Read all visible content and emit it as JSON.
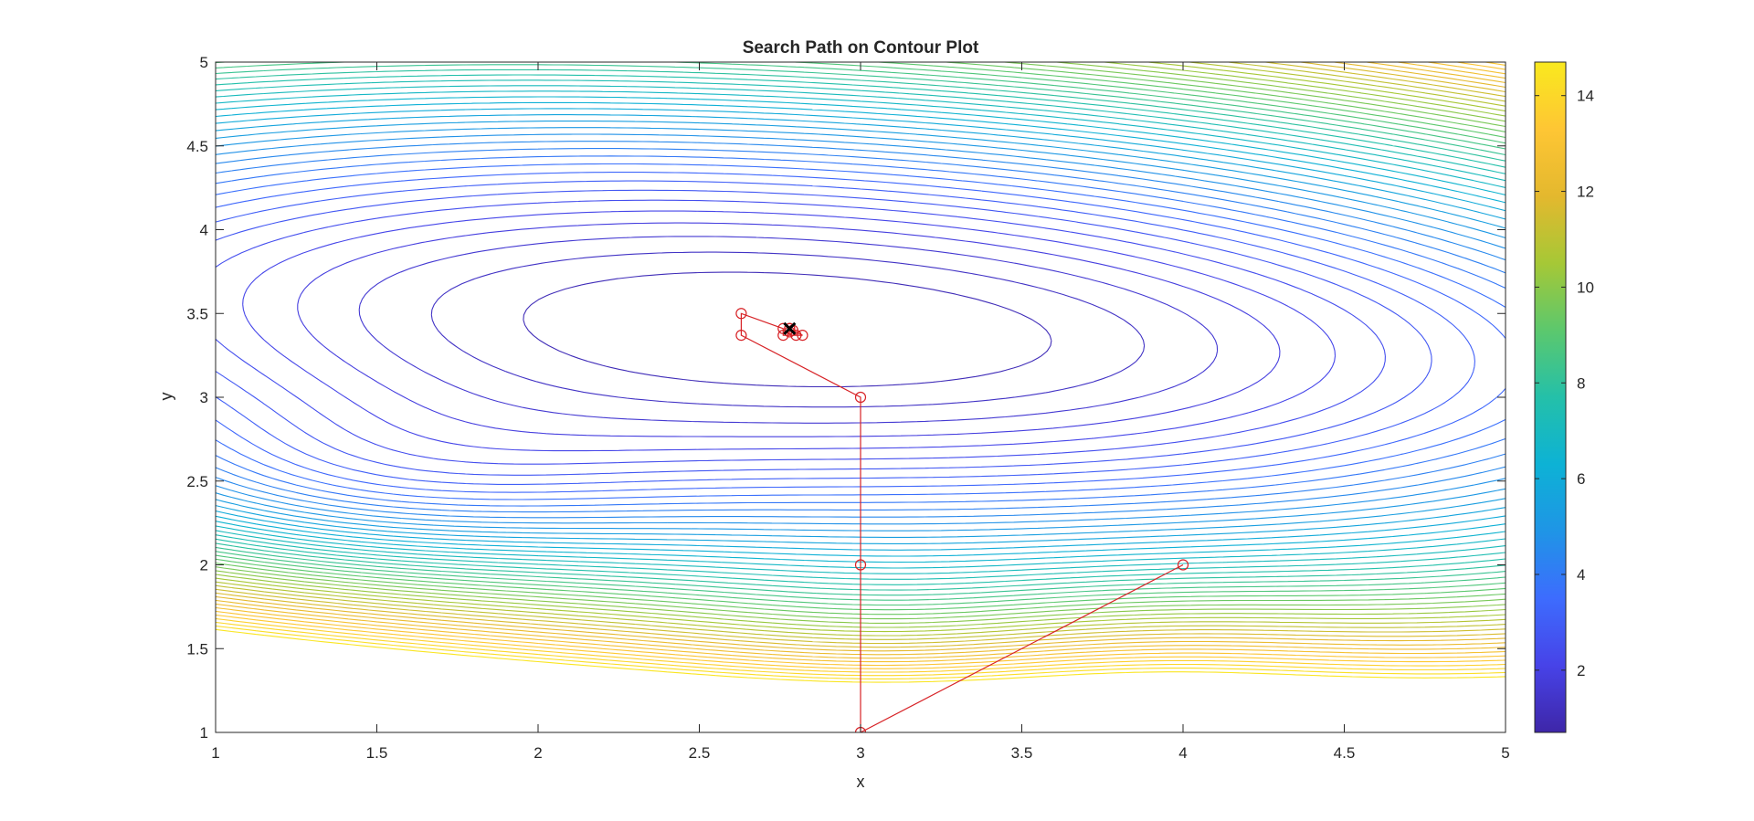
{
  "chart_data": {
    "type": "contour",
    "title": "Search Path on Contour Plot",
    "xlabel": "x",
    "ylabel": "y",
    "xlim": [
      1,
      5
    ],
    "ylim": [
      1,
      5
    ],
    "xticks": [
      "1",
      "1.5",
      "2",
      "2.5",
      "3",
      "3.5",
      "4",
      "4.5",
      "5"
    ],
    "yticks": [
      "1",
      "1.5",
      "2",
      "2.5",
      "3",
      "3.5",
      "4",
      "4.5",
      "5"
    ],
    "colorbar": {
      "ticks": [
        "2",
        "4",
        "6",
        "8",
        "10",
        "12",
        "14"
      ],
      "range": [
        0.7,
        14.7
      ],
      "colormap": "parula",
      "colors": [
        "#3e26a8",
        "#4743e8",
        "#3d6cfe",
        "#1f95e6",
        "#0db2d5",
        "#24c0a9",
        "#5cc86d",
        "#a6c836",
        "#e4b82e",
        "#fec634",
        "#f9e91e"
      ]
    },
    "contour": {
      "minimum": [
        2.78,
        3.41
      ],
      "min_value": 0.7,
      "max_value": 14.7,
      "levels": 48
    },
    "search_path": {
      "line_color": "#d72226",
      "marker": "circle",
      "points": [
        [
          4.0,
          2.0
        ],
        [
          3.0,
          1.0
        ],
        [
          3.0,
          2.0
        ],
        [
          3.0,
          3.0
        ],
        [
          2.63,
          3.37
        ],
        [
          2.63,
          3.5
        ],
        [
          2.76,
          3.41
        ],
        [
          2.76,
          3.37
        ],
        [
          2.8,
          3.37
        ],
        [
          2.82,
          3.37
        ],
        [
          2.78,
          3.41
        ],
        [
          2.78,
          3.39
        ],
        [
          2.79,
          3.4
        ],
        [
          2.78,
          3.41
        ]
      ]
    },
    "optimum_marker": {
      "x": 2.78,
      "y": 3.41,
      "symbol": "x",
      "color": "#000000"
    },
    "grid": false
  }
}
